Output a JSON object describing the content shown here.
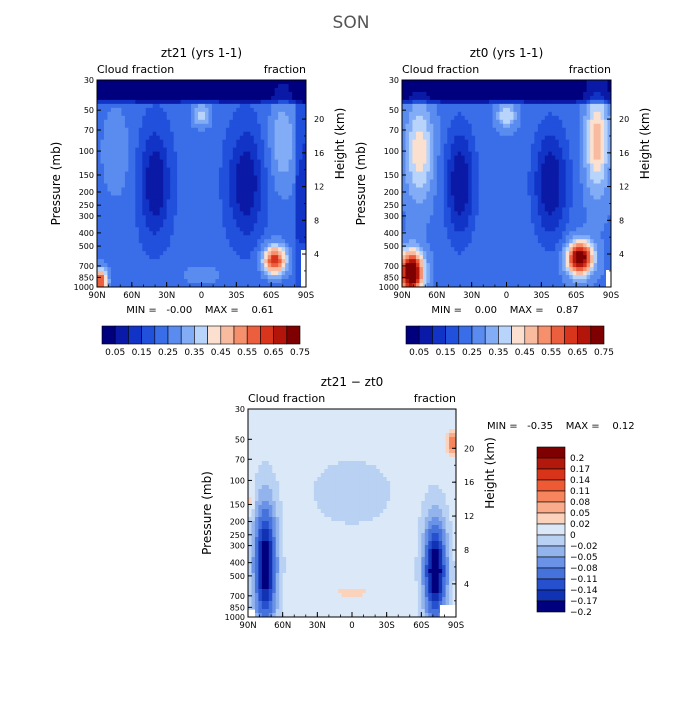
{
  "figure_title": "SON",
  "chart_data": [
    {
      "type": "heatmap",
      "title": "zt21 (yrs 1-1)",
      "left_title": "Cloud fraction",
      "right_title": "fraction",
      "xlabel": "",
      "ylabel": "Pressure (mb)",
      "y2label": "Height (km)",
      "x_ticks": [
        "90N",
        "60N",
        "30N",
        "0",
        "30S",
        "60S",
        "90S"
      ],
      "y_ticks": [
        30,
        50,
        70,
        100,
        150,
        200,
        250,
        300,
        400,
        500,
        700,
        850,
        1000
      ],
      "y2_ticks": [
        20,
        16,
        12,
        8,
        4
      ],
      "ylim": [
        1000,
        30
      ],
      "y_scale": "log",
      "stats": "MIN =   -0.00    MAX =    0.61",
      "colorbar": {
        "orientation": "horizontal",
        "levels": [
          0.05,
          0.1,
          0.15,
          0.2,
          0.25,
          0.3,
          0.35,
          0.4,
          0.45,
          0.5,
          0.55,
          0.6,
          0.65,
          0.7,
          0.75
        ],
        "labels": [
          "0.05",
          "0.15",
          "0.25",
          "0.35",
          "0.45",
          "0.55",
          "0.65",
          "0.75"
        ]
      }
    },
    {
      "type": "heatmap",
      "title": "zt0 (yrs 1-1)",
      "left_title": "Cloud fraction",
      "right_title": "fraction",
      "xlabel": "",
      "ylabel": "Pressure (mb)",
      "y2label": "Height (km)",
      "x_ticks": [
        "90N",
        "60N",
        "30N",
        "0",
        "30S",
        "60S",
        "90S"
      ],
      "y_ticks": [
        30,
        50,
        70,
        100,
        150,
        200,
        250,
        300,
        400,
        500,
        700,
        850,
        1000
      ],
      "y2_ticks": [
        20,
        16,
        12,
        8,
        4
      ],
      "ylim": [
        1000,
        30
      ],
      "y_scale": "log",
      "stats": "MIN =    0.00    MAX =    0.87",
      "colorbar": {
        "orientation": "horizontal",
        "levels": [
          0.05,
          0.1,
          0.15,
          0.2,
          0.25,
          0.3,
          0.35,
          0.4,
          0.45,
          0.5,
          0.55,
          0.6,
          0.65,
          0.7,
          0.75
        ],
        "labels": [
          "0.05",
          "0.15",
          "0.25",
          "0.35",
          "0.45",
          "0.55",
          "0.65",
          "0.75"
        ]
      }
    },
    {
      "type": "heatmap",
      "title": "zt21 − zt0",
      "left_title": "Cloud fraction",
      "right_title": "fraction",
      "xlabel": "",
      "ylabel": "Pressure (mb)",
      "y2label": "Height (km)",
      "x_ticks": [
        "90N",
        "60N",
        "30N",
        "0",
        "30S",
        "60S",
        "90S"
      ],
      "y_ticks": [
        30,
        50,
        70,
        100,
        150,
        200,
        250,
        300,
        400,
        500,
        700,
        850,
        1000
      ],
      "y2_ticks": [
        20,
        16,
        12,
        8,
        4
      ],
      "ylim": [
        1000,
        30
      ],
      "y_scale": "log",
      "stats": "MIN =   -0.35    MAX =    0.12",
      "colorbar": {
        "orientation": "vertical",
        "labels": [
          "0.2",
          "0.17",
          "0.14",
          "0.11",
          "0.08",
          "0.05",
          "0.02",
          "0",
          "−0.02",
          "−0.05",
          "−0.08",
          "−0.11",
          "−0.14",
          "−0.17",
          "−0.2"
        ]
      }
    }
  ]
}
